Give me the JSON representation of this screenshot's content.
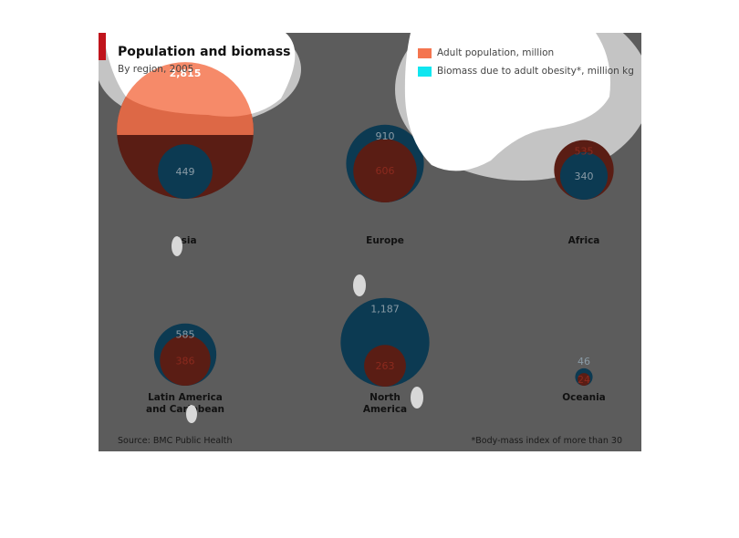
{
  "chart_data": {
    "type": "bubble",
    "title": "Population and biomass",
    "subtitle": "By region, 2005",
    "source": "Source: BMC Public Health",
    "footnote": "*Body-mass index of more than 30",
    "series": [
      {
        "name": "Adult population, million",
        "color": "#f4754f"
      },
      {
        "name": "Biomass due to adult obesity*, million kg",
        "color": "#10e6f0"
      }
    ],
    "regions": [
      {
        "name": "Asia",
        "label_lines": [
          "Asia"
        ],
        "population": 2815,
        "population_label": "2,815",
        "biomass": 449,
        "biomass_label": "449"
      },
      {
        "name": "Europe",
        "label_lines": [
          "Europe"
        ],
        "population": 606,
        "population_label": "606",
        "biomass": 910,
        "biomass_label": "910"
      },
      {
        "name": "Africa",
        "label_lines": [
          "Africa"
        ],
        "population": 535,
        "population_label": "535",
        "biomass": 340,
        "biomass_label": "340"
      },
      {
        "name": "Latin America and Caribbean",
        "label_lines": [
          "Latin America",
          "and Caribbean"
        ],
        "population": 386,
        "population_label": "386",
        "biomass": 585,
        "biomass_label": "585"
      },
      {
        "name": "North America",
        "label_lines": [
          "North",
          "America"
        ],
        "population": 263,
        "population_label": "263",
        "biomass": 1187,
        "biomass_label": "1,187"
      },
      {
        "name": "Oceania",
        "label_lines": [
          "Oceania"
        ],
        "population": 24,
        "population_label": "24",
        "biomass": 46,
        "biomass_label": "46"
      }
    ],
    "colors": {
      "background": "#5c5c5c",
      "population_fill": "#5a1d14",
      "biomass_fill": "#0c3a52",
      "highlight_blob": "#ffffff",
      "halo": "#c4c4c4",
      "accent_tab": "#c0141c",
      "region_label": "#111111",
      "population_text": "#8b2a1e",
      "biomass_text": "#8a9ba6",
      "population_text_on_highlight": "#ffffff"
    }
  }
}
